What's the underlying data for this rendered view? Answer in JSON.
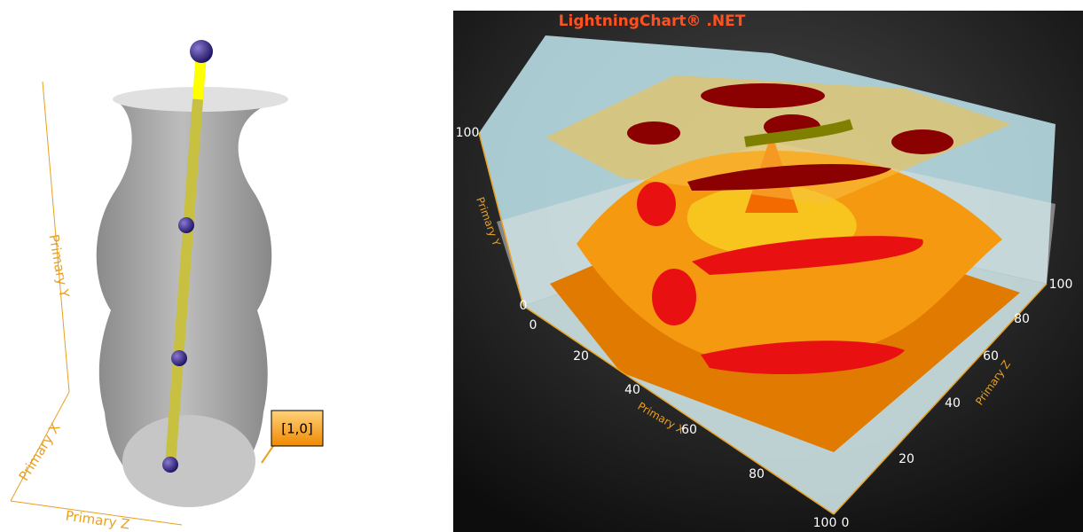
{
  "left_chart": {
    "axis_titles": {
      "y": "Primary Y",
      "x": "Primary X",
      "z": "Primary Z"
    },
    "annotation": "[1,0]"
  },
  "right_chart": {
    "title": "LightningChart® .NET",
    "axis_titles": {
      "y": "Primary Y",
      "x": "Primary X",
      "z": "Primary Z"
    },
    "y_ticks": [
      0,
      100
    ],
    "x_ticks": [
      0,
      20,
      40,
      60,
      80,
      100
    ],
    "z_ticks": [
      0,
      20,
      40,
      60,
      80,
      100
    ]
  }
}
